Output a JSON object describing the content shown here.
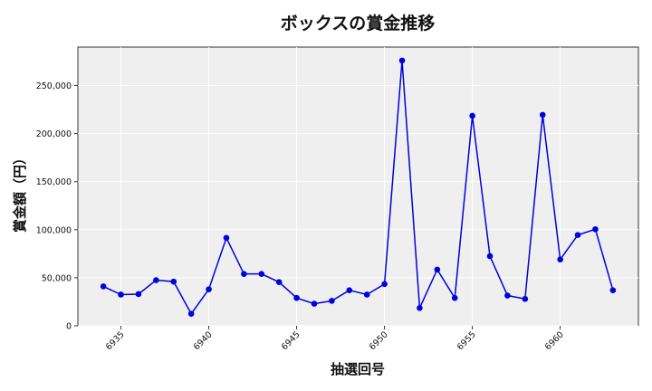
{
  "chart_data": {
    "type": "line",
    "title": "ボックスの賞金推移",
    "xlabel": "抽選回号",
    "ylabel": "賞金額（円）",
    "x": [
      6934,
      6935,
      6936,
      6937,
      6938,
      6939,
      6940,
      6941,
      6942,
      6943,
      6944,
      6945,
      6946,
      6947,
      6948,
      6949,
      6950,
      6951,
      6952,
      6953,
      6954,
      6955,
      6956,
      6957,
      6958,
      6959,
      6960,
      6961,
      6962,
      6963
    ],
    "y": [
      41000,
      32500,
      33000,
      47500,
      46000,
      12500,
      38000,
      91500,
      54000,
      54000,
      45500,
      29000,
      23000,
      26000,
      37000,
      32500,
      43500,
      276000,
      18500,
      58500,
      29000,
      218500,
      72500,
      31500,
      28000,
      219500,
      69000,
      94500,
      100500,
      37000
    ],
    "xticks": [
      6935,
      6940,
      6945,
      6950,
      6955,
      6960
    ],
    "xtick_labels": [
      "6935",
      "6940",
      "6945",
      "6950",
      "6955",
      "6960"
    ],
    "yticks": [
      0,
      50000,
      100000,
      150000,
      200000,
      250000
    ],
    "ytick_labels": [
      "0",
      "50,000",
      "100,000",
      "150,000",
      "200,000",
      "250,000"
    ],
    "xlim": [
      6932.55,
      6964.45
    ],
    "ylim": [
      0,
      290000
    ],
    "grid": true,
    "color": "#0000dd",
    "background": "#efefef"
  }
}
